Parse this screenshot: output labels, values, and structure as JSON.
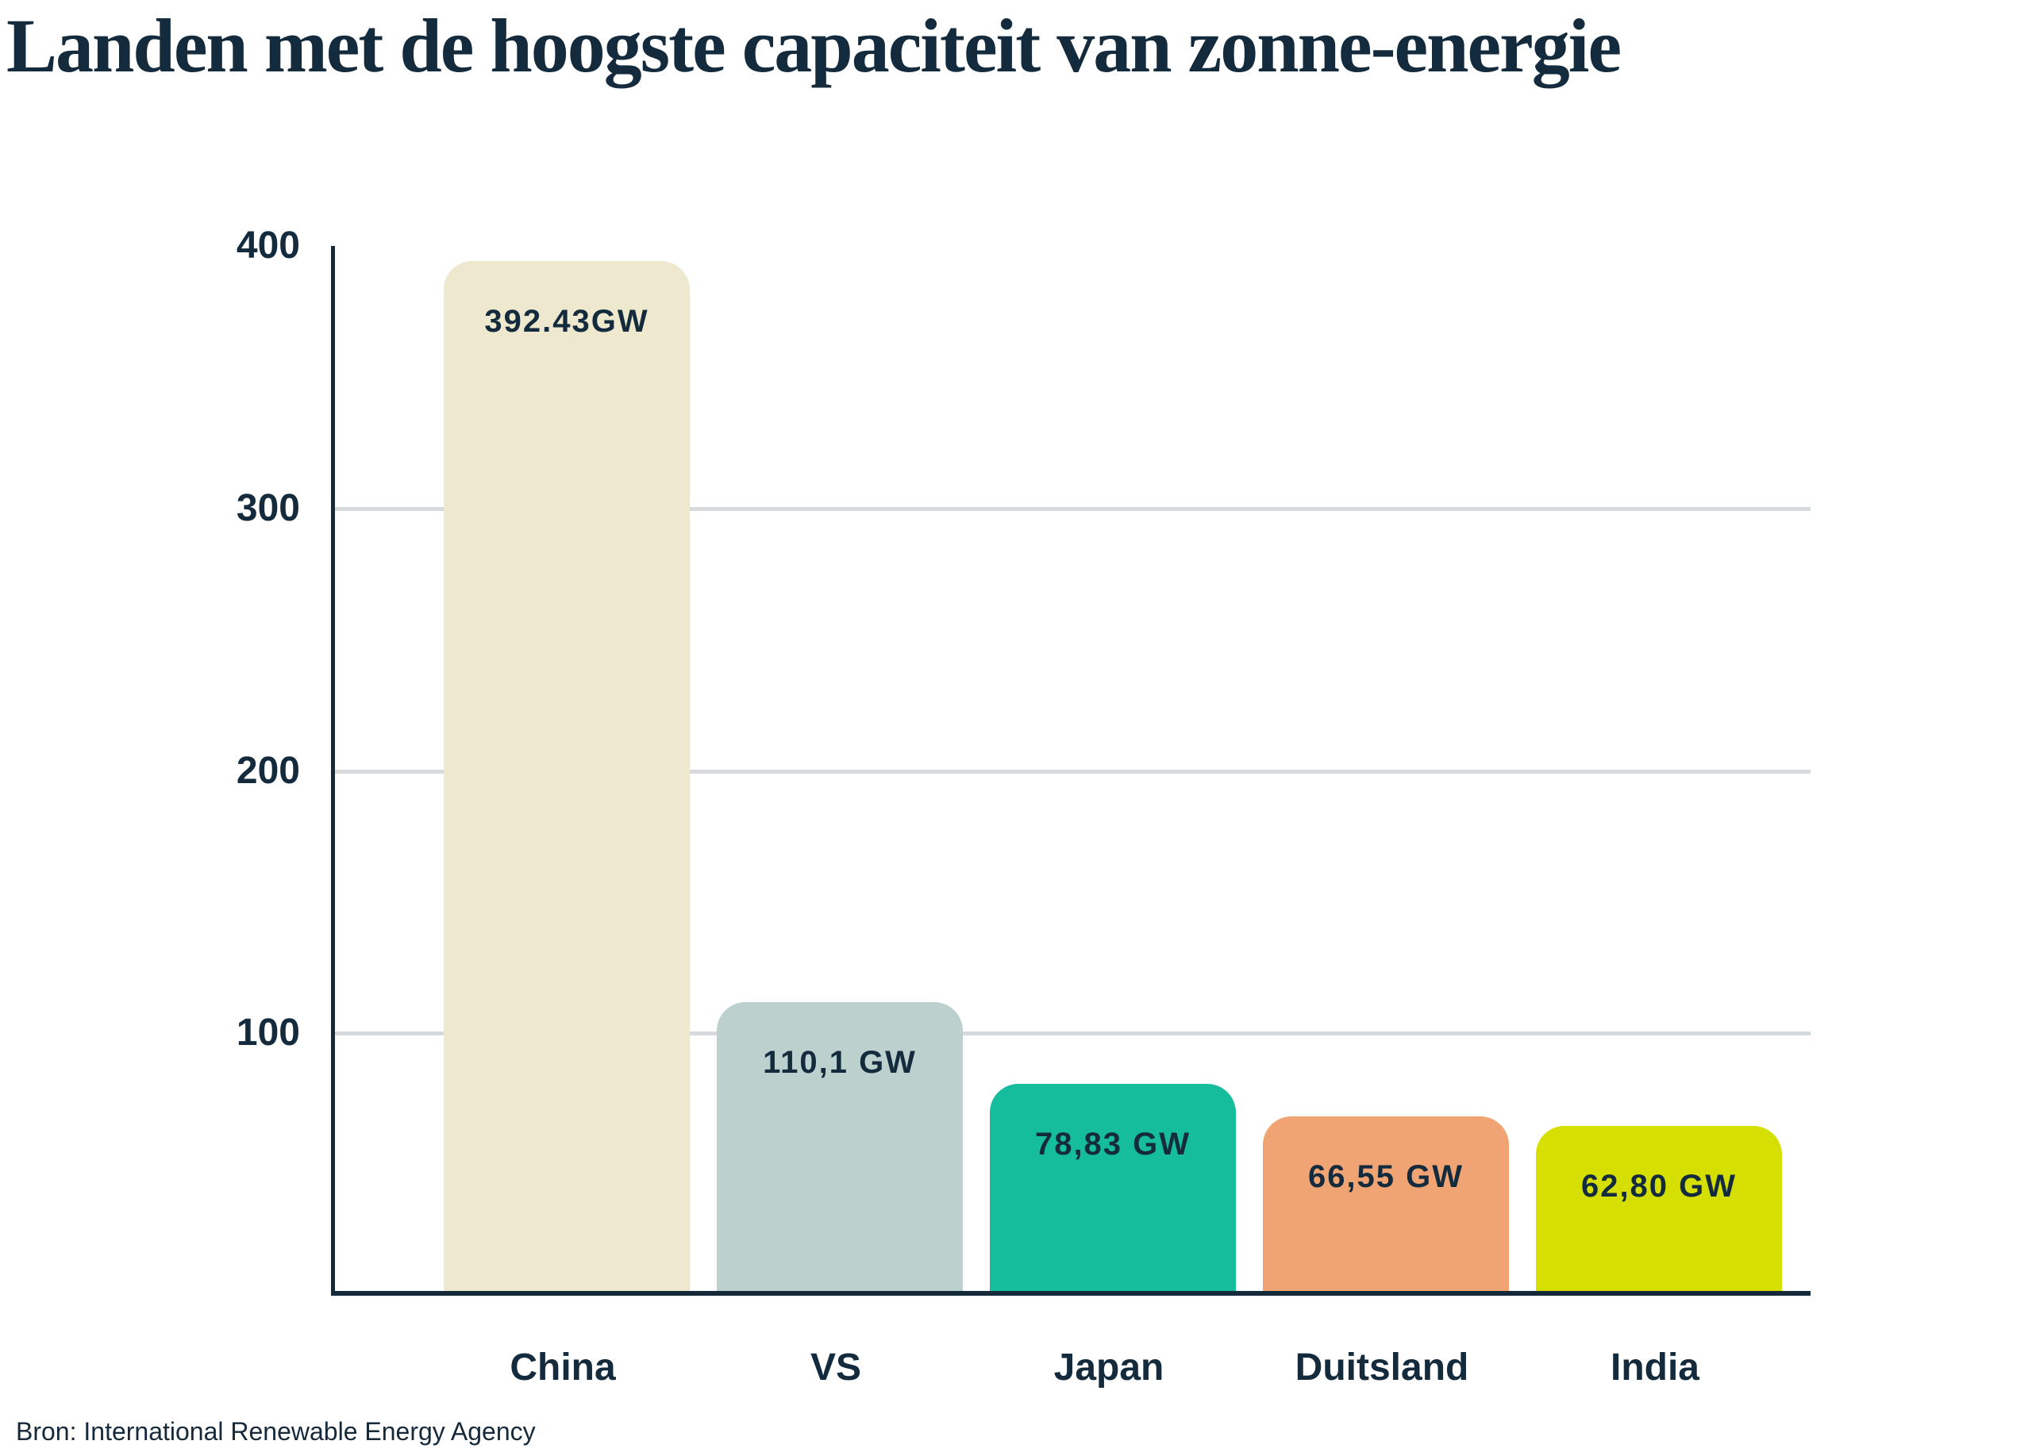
{
  "title": "Landen met de hoogste capaciteit van zonne-energie",
  "source": "Bron: International Renewable Energy Agency",
  "chart_data": {
    "type": "bar",
    "title": "Landen met de hoogste capaciteit van zonne-energie",
    "categories": [
      "China",
      "VS",
      "Japan",
      "Duitsland",
      "India"
    ],
    "values": [
      392.43,
      110.1,
      78.83,
      66.55,
      62.8
    ],
    "bar_labels": [
      "392.43GW",
      "110,1 GW",
      "78,83 GW",
      "66,55 GW",
      "62,80 GW"
    ],
    "bar_colors": [
      "#EDE8CE",
      "#BCD1CE",
      "#15BD9C",
      "#F0A473",
      "#D5E002"
    ],
    "xlabel": "",
    "ylabel": "",
    "ylim": [
      0,
      400
    ],
    "yticks": [
      400,
      300,
      200,
      100
    ],
    "gridlines": [
      300,
      200,
      100
    ],
    "grid": "horizontal",
    "legend": "none",
    "source_note": "Bron: International Renewable Energy Agency",
    "colors": {
      "text": "#132B3D",
      "axis": "#14293A",
      "gridline": "#D6DADD",
      "background": "#FFFFFF"
    }
  }
}
